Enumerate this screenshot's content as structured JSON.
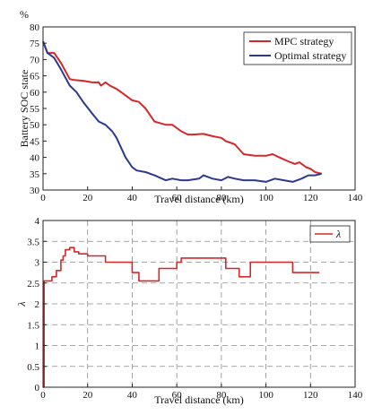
{
  "chart_data": [
    {
      "type": "line",
      "unit_label": "%",
      "xlabel": "Travel distance (km)",
      "ylabel": "Battery SOC state",
      "xlim": [
        0,
        140
      ],
      "ylim": [
        30,
        80
      ],
      "xticks": [
        "0",
        "20",
        "40",
        "60",
        "80",
        "100",
        "120",
        "140"
      ],
      "yticks": [
        "30",
        "35",
        "40",
        "45",
        "50",
        "55",
        "60",
        "65",
        "70",
        "75",
        "80"
      ],
      "grid": "off",
      "legend_position": "top-right",
      "series": [
        {
          "name": "MPC strategy",
          "color": "#d62728",
          "x": [
            0,
            2,
            5,
            8,
            12,
            14,
            18,
            22,
            25,
            26,
            28,
            30,
            33,
            36,
            38,
            40,
            43,
            46,
            50,
            55,
            58,
            62,
            65,
            67,
            72,
            76,
            80,
            82,
            86,
            90,
            95,
            100,
            103,
            106,
            110,
            113,
            115,
            118,
            120,
            122,
            125
          ],
          "y": [
            75.5,
            72,
            72,
            69,
            64,
            63.7,
            63.5,
            63,
            63,
            62,
            63,
            62,
            61,
            59.5,
            58.5,
            57.5,
            57,
            55,
            51,
            50,
            50,
            48,
            47,
            47,
            47.2,
            46.5,
            46,
            45,
            44,
            41,
            40.5,
            40.5,
            41,
            40,
            38.8,
            38,
            38.5,
            37,
            36.5,
            35.5,
            35
          ]
        },
        {
          "name": "Optimal strategy",
          "color": "#2b3a8f",
          "x": [
            0,
            2,
            5,
            8,
            12,
            15,
            18,
            22,
            25,
            28,
            31,
            33,
            35,
            37,
            40,
            42,
            46,
            50,
            55,
            58,
            62,
            65,
            70,
            72,
            76,
            80,
            83,
            86,
            90,
            95,
            100,
            104,
            108,
            112,
            116,
            119,
            122,
            125
          ],
          "y": [
            75.5,
            72,
            70.5,
            67,
            62,
            60,
            57,
            53.5,
            51,
            50,
            48,
            46,
            43,
            40,
            37,
            36,
            35.5,
            34.5,
            33,
            33.5,
            33,
            33,
            33.5,
            34.5,
            33.5,
            33,
            34,
            33.5,
            33,
            33,
            32.5,
            33.5,
            33,
            32.5,
            33.5,
            34.5,
            34.5,
            35
          ]
        }
      ]
    },
    {
      "type": "line",
      "xlabel": "Travel distance (km)",
      "ylabel": "λ",
      "xlim": [
        0,
        140
      ],
      "ylim": [
        0,
        4
      ],
      "xticks": [
        "0",
        "20",
        "40",
        "60",
        "80",
        "100",
        "120",
        "140"
      ],
      "yticks": [
        "0",
        "0.5",
        "1",
        "1.5",
        "2",
        "2.5",
        "3",
        "3.5",
        "4"
      ],
      "grid": "on",
      "legend_position": "top-right",
      "step": true,
      "series": [
        {
          "name": "λ",
          "color": "#d62728",
          "x": [
            0,
            0.5,
            4,
            6,
            8,
            9,
            10,
            12,
            14,
            16,
            20,
            28,
            40,
            43,
            52,
            60,
            62,
            80,
            82,
            88,
            93,
            110,
            112,
            124
          ],
          "y": [
            0,
            2.55,
            2.65,
            2.8,
            3.05,
            3.15,
            3.3,
            3.35,
            3.25,
            3.2,
            3.15,
            3.0,
            2.75,
            2.55,
            2.85,
            3.0,
            3.1,
            3.1,
            2.85,
            2.65,
            3.0,
            3.0,
            2.75,
            2.75
          ]
        }
      ]
    }
  ]
}
